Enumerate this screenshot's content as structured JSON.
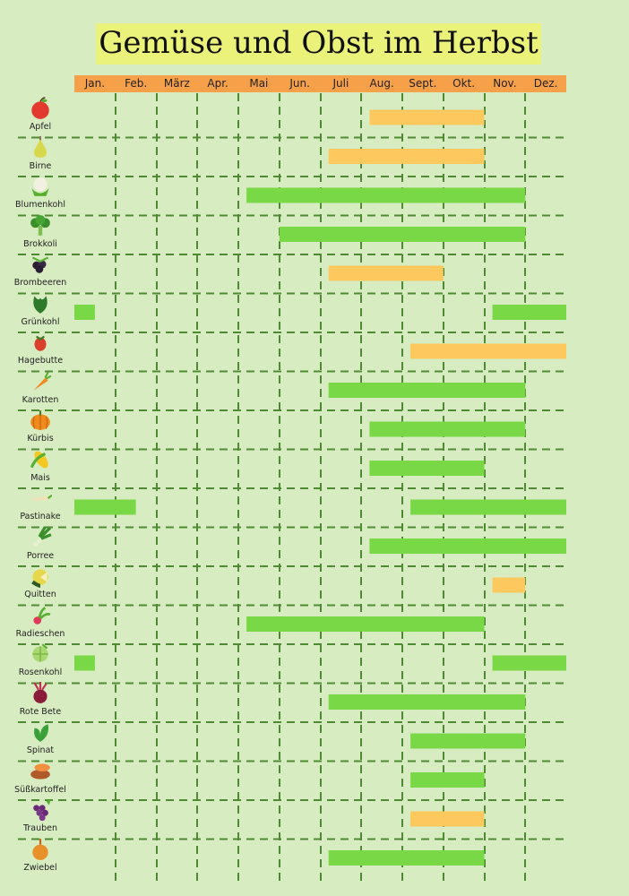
{
  "chart_data": {
    "type": "bar",
    "title": "Gemüse und Obst im Herbst",
    "months": [
      "Jan.",
      "Feb.",
      "März",
      "Apr.",
      "Mai",
      "Jun.",
      "Juli",
      "Aug.",
      "Sept.",
      "Okt.",
      "Nov.",
      "Dez."
    ],
    "colors": {
      "fruit": "#fdc85e",
      "vegetable": "#79d845",
      "grid": "#4e8a32",
      "month_bar": "#f7a04a",
      "title_bg": "#eaf27a",
      "background": "#d8ecc2"
    },
    "items": [
      {
        "name": "Apfel",
        "kind": "fruit",
        "icon": "apple-icon",
        "ranges": [
          [
            7.2,
            10.0
          ]
        ]
      },
      {
        "name": "Birne",
        "kind": "fruit",
        "icon": "pear-icon",
        "ranges": [
          [
            6.2,
            10.0
          ]
        ]
      },
      {
        "name": "Blumenkohl",
        "kind": "vegetable",
        "icon": "cauliflower-icon",
        "ranges": [
          [
            4.2,
            11.0
          ]
        ]
      },
      {
        "name": "Brokkoli",
        "kind": "vegetable",
        "icon": "broccoli-icon",
        "ranges": [
          [
            5.0,
            11.0
          ]
        ]
      },
      {
        "name": "Brombeeren",
        "kind": "fruit",
        "icon": "blackberry-icon",
        "ranges": [
          [
            6.2,
            9.0
          ]
        ]
      },
      {
        "name": "Grünkohl",
        "kind": "vegetable",
        "icon": "kale-icon",
        "ranges": [
          [
            0.0,
            0.5
          ],
          [
            10.2,
            12.0
          ]
        ]
      },
      {
        "name": "Hagebutte",
        "kind": "fruit",
        "icon": "rosehip-icon",
        "ranges": [
          [
            8.2,
            12.0
          ]
        ]
      },
      {
        "name": "Karotten",
        "kind": "vegetable",
        "icon": "carrot-icon",
        "ranges": [
          [
            6.2,
            11.0
          ]
        ]
      },
      {
        "name": "Kürbis",
        "kind": "vegetable",
        "icon": "pumpkin-icon",
        "ranges": [
          [
            7.2,
            11.0
          ]
        ]
      },
      {
        "name": "Mais",
        "kind": "vegetable",
        "icon": "corn-icon",
        "ranges": [
          [
            7.2,
            10.0
          ]
        ]
      },
      {
        "name": "Pastinake",
        "kind": "vegetable",
        "icon": "parsnip-icon",
        "ranges": [
          [
            0.0,
            1.5
          ],
          [
            8.2,
            12.0
          ]
        ]
      },
      {
        "name": "Porree",
        "kind": "vegetable",
        "icon": "leek-icon",
        "ranges": [
          [
            7.2,
            12.0
          ]
        ]
      },
      {
        "name": "Quitten",
        "kind": "fruit",
        "icon": "quince-icon",
        "ranges": [
          [
            10.2,
            11.0
          ]
        ]
      },
      {
        "name": "Radieschen",
        "kind": "vegetable",
        "icon": "radish-icon",
        "ranges": [
          [
            4.2,
            10.0
          ]
        ]
      },
      {
        "name": "Rosenkohl",
        "kind": "vegetable",
        "icon": "brussels-sprout-icon",
        "ranges": [
          [
            0.0,
            0.5
          ],
          [
            10.2,
            12.0
          ]
        ]
      },
      {
        "name": "Rote Bete",
        "kind": "vegetable",
        "icon": "beetroot-icon",
        "ranges": [
          [
            6.2,
            11.0
          ]
        ]
      },
      {
        "name": "Spinat",
        "kind": "vegetable",
        "icon": "spinach-icon",
        "ranges": [
          [
            8.2,
            11.0
          ]
        ]
      },
      {
        "name": "Süßkartoffel",
        "kind": "vegetable",
        "icon": "sweet-potato-icon",
        "ranges": [
          [
            8.2,
            10.0
          ]
        ]
      },
      {
        "name": "Trauben",
        "kind": "fruit",
        "icon": "grapes-icon",
        "ranges": [
          [
            8.2,
            10.0
          ]
        ]
      },
      {
        "name": "Zwiebel",
        "kind": "vegetable",
        "icon": "onion-icon",
        "ranges": [
          [
            6.2,
            10.0
          ]
        ]
      }
    ]
  }
}
